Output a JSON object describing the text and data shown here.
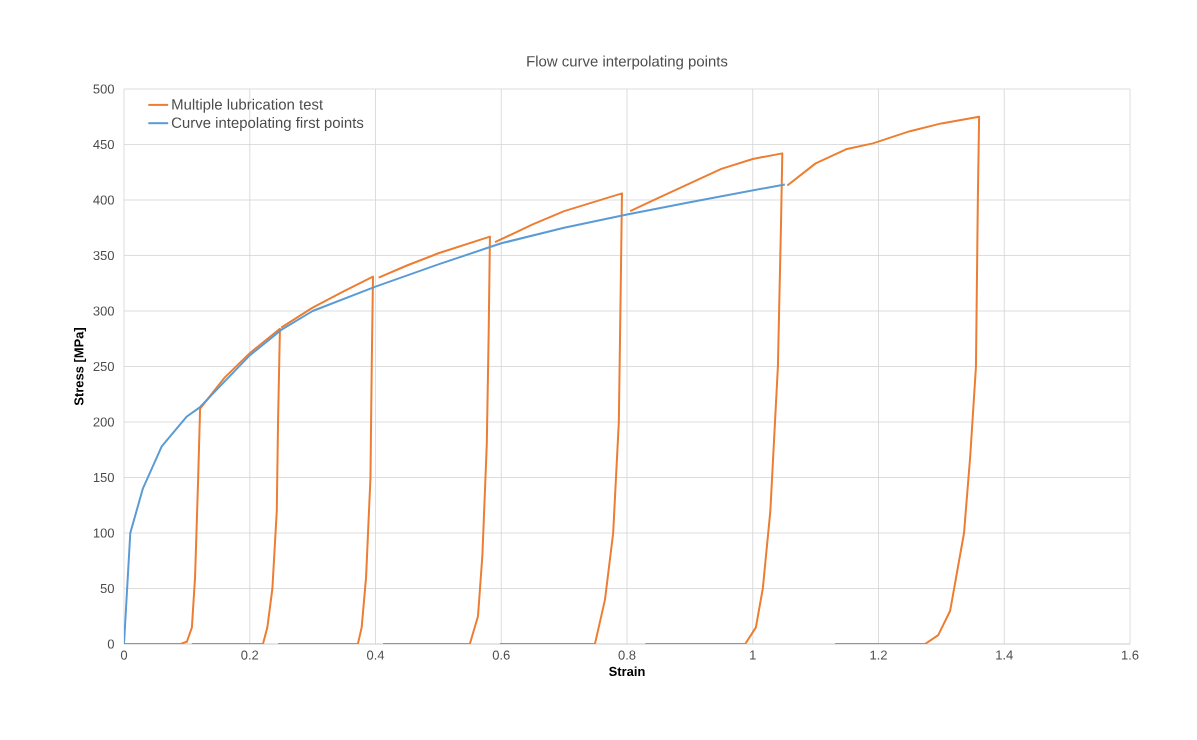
{
  "chart_data": {
    "type": "line",
    "title": "Flow curve interpolating points",
    "xlabel": "Strain",
    "ylabel": "Stress [MPa]",
    "xlim": [
      0,
      1.6
    ],
    "xticks": [
      0,
      0.2,
      0.4,
      0.6,
      0.8,
      1,
      1.2,
      1.4,
      1.6
    ],
    "ylim": [
      0,
      500
    ],
    "yticks": [
      0,
      50,
      100,
      150,
      200,
      250,
      300,
      350,
      400,
      450,
      500
    ],
    "grid": true,
    "legend": "top left",
    "marker": "none",
    "line_style": "solid",
    "series": [
      {
        "name": "Multiple lubrication test",
        "color": "#ed7d31",
        "x": [
          0,
          0.09,
          0.1,
          0.108,
          0.113,
          0.118,
          0.121,
          null,
          0.121,
          0.16,
          0.2,
          0.248,
          0.245,
          0.243,
          0.236,
          0.228,
          0.221,
          0.108,
          null,
          0.25,
          0.3,
          0.35,
          0.396,
          0.394,
          0.392,
          0.385,
          0.378,
          0.372,
          0.245,
          null,
          0.405,
          0.45,
          0.5,
          0.582,
          0.58,
          0.577,
          0.57,
          0.563,
          0.55,
          0.412,
          null,
          0.59,
          0.65,
          0.7,
          0.792,
          0.79,
          0.787,
          0.778,
          0.765,
          0.749,
          0.598,
          null,
          0.805,
          0.85,
          0.9,
          0.95,
          1.0,
          1.047,
          1.045,
          1.04,
          1.028,
          1.016,
          1.005,
          0.988,
          0.829,
          null,
          1.055,
          1.1,
          1.15,
          1.191,
          1.25,
          1.3,
          1.36,
          1.358,
          1.355,
          1.346,
          1.336,
          1.314,
          1.295,
          1.274,
          1.131
        ],
        "values": [
          0,
          0,
          2,
          15,
          60,
          150,
          212,
          null,
          212,
          240,
          262,
          284,
          200,
          120,
          50,
          15,
          0,
          0,
          null,
          285,
          303,
          318,
          331,
          250,
          150,
          60,
          15,
          0,
          0,
          null,
          330,
          341,
          352,
          367,
          280,
          180,
          80,
          25,
          0,
          0,
          null,
          362,
          378,
          390,
          406,
          320,
          200,
          100,
          40,
          0,
          0,
          null,
          390,
          402,
          415,
          428,
          437,
          442,
          380,
          250,
          120,
          50,
          15,
          0,
          0,
          null,
          413,
          433,
          446,
          451,
          462,
          469,
          475,
          400,
          250,
          170,
          100,
          30,
          8,
          0,
          0
        ]
      },
      {
        "name": "Curve intepolating first points",
        "color": "#5b9bd5",
        "x": [
          0,
          0.01,
          0.03,
          0.06,
          0.1,
          0.12,
          0.2,
          0.25,
          0.3,
          0.4,
          0.5,
          0.6,
          0.7,
          0.8,
          0.9,
          1.051
        ],
        "values": [
          0,
          100,
          140,
          178,
          205,
          213,
          260,
          283,
          300,
          322,
          342,
          361,
          375,
          387,
          398,
          414
        ]
      }
    ]
  }
}
